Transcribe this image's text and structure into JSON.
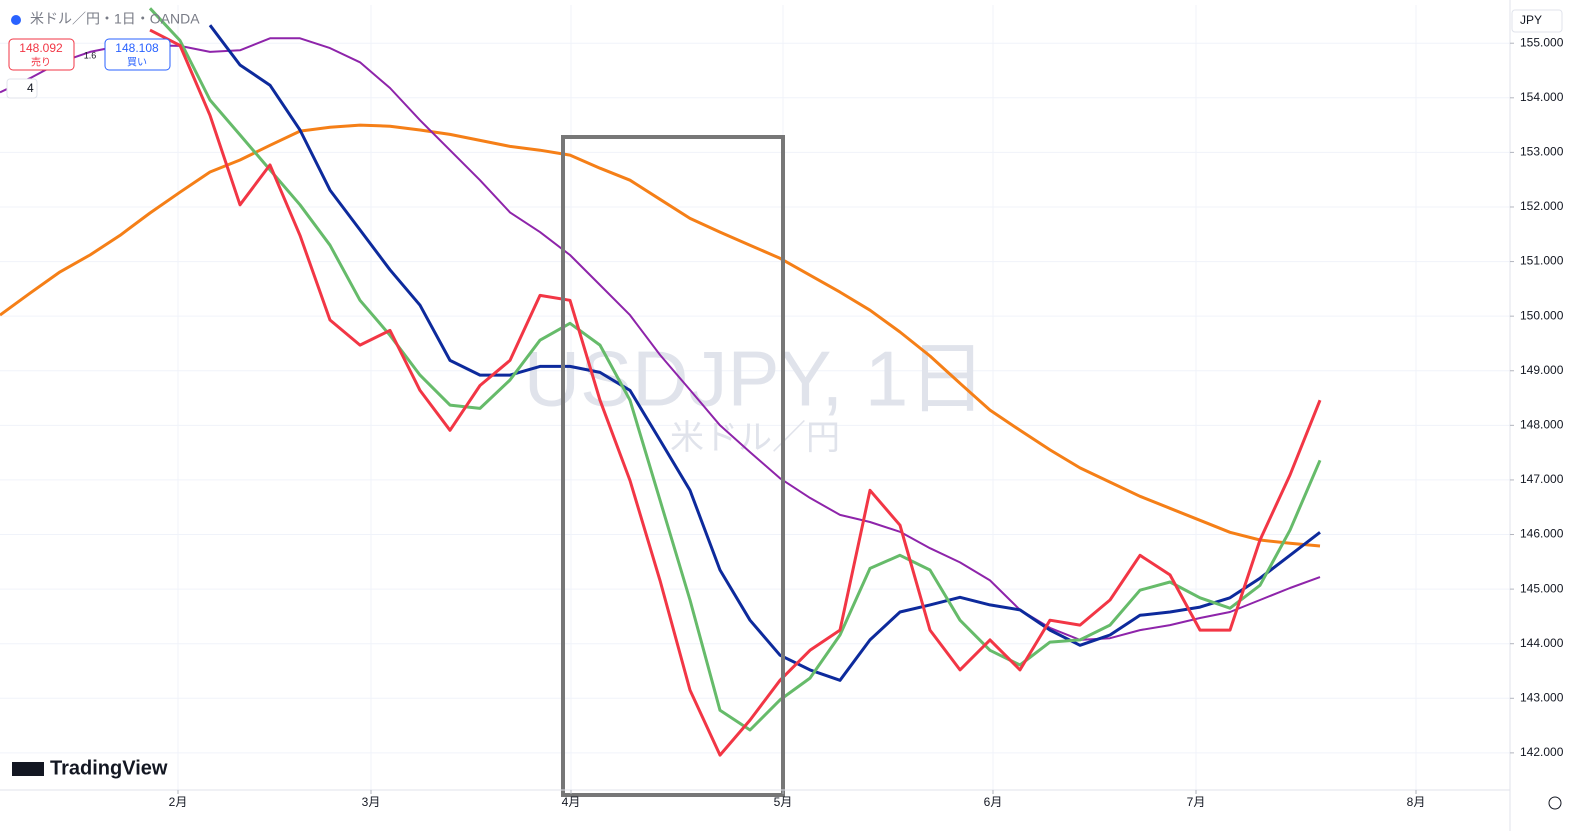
{
  "ui": {
    "symbol": "米ドル／円・1日・OANDA",
    "sell_price": "148.092",
    "sell_label": "売り",
    "spread": "1.6",
    "buy_price": "148.108",
    "buy_label": "買い",
    "indicator_count": "4",
    "watermark": "USDJPY, 1日",
    "watermark_sub": "米ドル／円",
    "currency": "JPY",
    "brand": "TradingView"
  },
  "chart_data": {
    "type": "line",
    "x": [
      0,
      3,
      6,
      9,
      12,
      15,
      18,
      21,
      24,
      27,
      30,
      33,
      36,
      39,
      42,
      45,
      48,
      51,
      54,
      57,
      60,
      63,
      66,
      69,
      72,
      75,
      78,
      81,
      84,
      87,
      90,
      93,
      96,
      99,
      102,
      105,
      108,
      111,
      114,
      117,
      120,
      123,
      126,
      129,
      132
    ],
    "xlim": [
      0,
      151
    ],
    "xticks": [
      {
        "value": 17.8,
        "label": "2月"
      },
      {
        "value": 37.1,
        "label": "3月"
      },
      {
        "value": 57.1,
        "label": "4月"
      },
      {
        "value": 78.3,
        "label": "5月"
      },
      {
        "value": 99.3,
        "label": "6月"
      },
      {
        "value": 119.6,
        "label": "7月"
      },
      {
        "value": 141.6,
        "label": "8月"
      }
    ],
    "ylim": [
      141.32,
      155.7
    ],
    "yticks": [
      {
        "value": 142,
        "label": "142.000"
      },
      {
        "value": 143,
        "label": "143.000"
      },
      {
        "value": 144,
        "label": "144.000"
      },
      {
        "value": 145,
        "label": "145.000"
      },
      {
        "value": 146,
        "label": "146.000"
      },
      {
        "value": 147,
        "label": "147.000"
      },
      {
        "value": 148,
        "label": "148.000"
      },
      {
        "value": 149,
        "label": "149.000"
      },
      {
        "value": 150,
        "label": "150.000"
      },
      {
        "value": 151,
        "label": "151.000"
      },
      {
        "value": 152,
        "label": "152.000"
      },
      {
        "value": 153,
        "label": "153.000"
      },
      {
        "value": 154,
        "label": "154.000"
      },
      {
        "value": 155,
        "label": "155.000"
      }
    ],
    "grid": true,
    "series": [
      {
        "color": "#f57f17",
        "values": [
          150.02,
          150.42,
          150.81,
          151.12,
          151.48,
          151.89,
          152.27,
          152.64,
          152.86,
          153.13,
          153.39,
          153.46,
          153.5,
          153.48,
          153.41,
          153.33,
          153.22,
          153.11,
          153.04,
          152.95,
          152.71,
          152.49,
          152.14,
          151.79,
          151.54,
          151.3,
          151.06,
          150.75,
          150.44,
          150.11,
          149.71,
          149.27,
          148.77,
          148.28,
          147.91,
          147.55,
          147.22,
          146.96,
          146.7,
          146.48,
          146.26,
          146.04,
          145.9,
          145.84,
          145.79
        ]
      },
      {
        "color": "#8e24aa",
        "values": [
          154.1,
          154.36,
          154.65,
          154.84,
          154.95,
          154.96,
          154.95,
          154.84,
          154.87,
          155.09,
          155.09,
          154.91,
          154.65,
          154.18,
          153.59,
          153.04,
          152.49,
          151.9,
          151.54,
          151.12,
          150.57,
          150.02,
          149.29,
          148.65,
          148.0,
          147.51,
          147.03,
          146.67,
          146.36,
          146.23,
          146.05,
          145.75,
          145.49,
          145.16,
          144.62,
          144.29,
          144.07,
          144.1,
          144.25,
          144.34,
          144.47,
          144.58,
          144.8,
          145.02,
          145.22
        ]
      },
      {
        "color": "#0d2a9c",
        "values": [
          null,
          null,
          null,
          null,
          null,
          null,
          null,
          155.33,
          154.6,
          154.23,
          153.41,
          152.31,
          151.58,
          150.85,
          150.2,
          149.19,
          148.92,
          148.92,
          149.08,
          149.08,
          148.97,
          148.64,
          147.73,
          146.81,
          145.35,
          144.43,
          143.79,
          143.52,
          143.33,
          144.07,
          144.58,
          144.71,
          144.85,
          144.71,
          144.62,
          144.25,
          143.97,
          144.16,
          144.52,
          144.58,
          144.67,
          144.84,
          145.2,
          145.62,
          146.04
        ]
      },
      {
        "color": "#66bb6a",
        "values": [
          null,
          null,
          null,
          null,
          null,
          155.64,
          155.05,
          153.96,
          153.32,
          152.68,
          152.04,
          151.3,
          150.29,
          149.65,
          148.92,
          148.37,
          148.31,
          148.83,
          149.56,
          149.87,
          149.47,
          148.46,
          146.63,
          144.8,
          142.78,
          142.42,
          142.97,
          143.37,
          144.16,
          145.38,
          145.62,
          145.35,
          144.43,
          143.88,
          143.61,
          144.03,
          144.07,
          144.34,
          144.98,
          145.13,
          144.84,
          144.65,
          145.07,
          146.08,
          147.36
        ]
      },
      {
        "color": "#f23645",
        "values": [
          null,
          null,
          null,
          null,
          null,
          155.24,
          154.96,
          153.68,
          152.04,
          152.77,
          151.48,
          149.93,
          149.47,
          149.74,
          148.64,
          147.91,
          148.73,
          149.19,
          150.38,
          150.29,
          148.46,
          146.99,
          145.16,
          143.15,
          141.96,
          142.6,
          143.33,
          143.88,
          144.25,
          146.81,
          146.17,
          144.25,
          143.52,
          144.07,
          143.52,
          144.43,
          144.34,
          144.8,
          145.62,
          145.26,
          144.25,
          144.25,
          145.9,
          147.09,
          148.46
        ]
      }
    ]
  }
}
